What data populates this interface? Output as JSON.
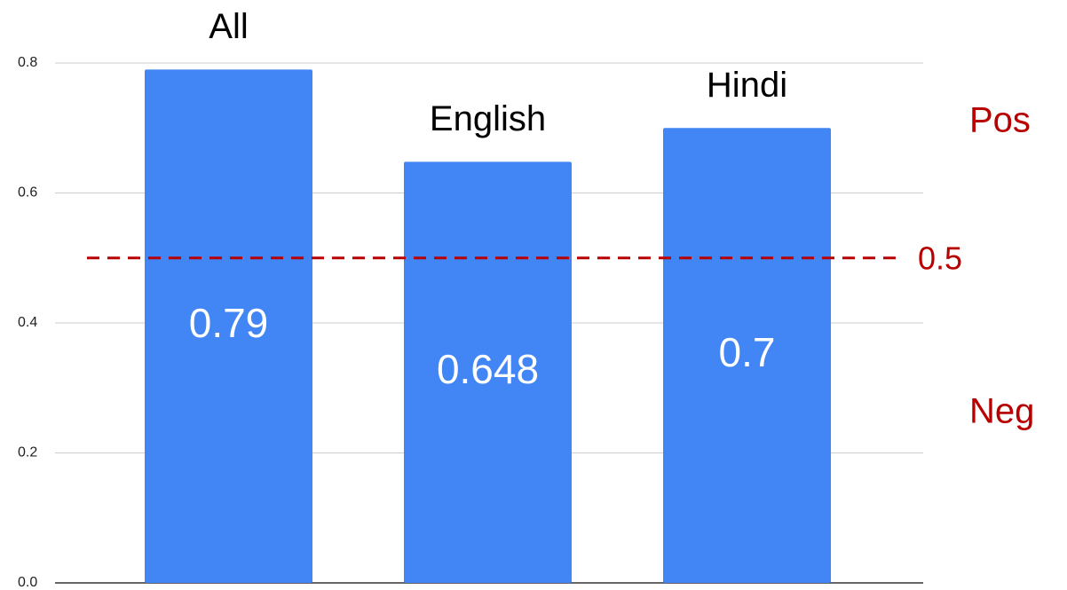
{
  "chart_data": {
    "type": "bar",
    "categories": [
      "All",
      "English",
      "Hindi"
    ],
    "values": [
      0.79,
      0.648,
      0.7
    ],
    "color": "#4285f4",
    "ylim": [
      0,
      0.8
    ],
    "yticks": [
      {
        "value": 0,
        "label": "0.0"
      },
      0.2,
      0.4,
      0.6,
      0.8
    ],
    "grid": true,
    "threshold": {
      "value": 0.5,
      "color": "#b80000"
    },
    "annotations": [
      "Pos",
      "Neg"
    ]
  }
}
